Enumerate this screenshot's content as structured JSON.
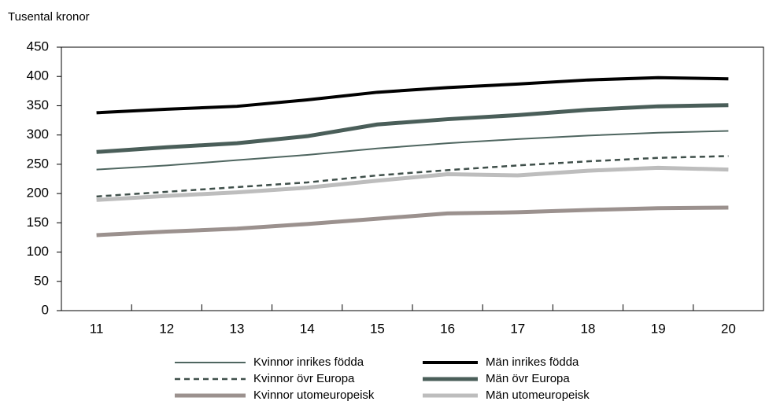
{
  "chart_data": {
    "type": "line",
    "y_label": "Tusental kronor",
    "categories": [
      "11",
      "12",
      "13",
      "14",
      "15",
      "16",
      "17",
      "18",
      "19",
      "20"
    ],
    "ylim": [
      0,
      450
    ],
    "yticks": [
      0,
      50,
      100,
      150,
      200,
      250,
      300,
      350,
      400,
      450
    ],
    "grid": false,
    "legend": "bottom",
    "series": [
      {
        "name": "Kvinnor inrikes födda",
        "color": "#4f6660",
        "line_width": 2,
        "dashed": false,
        "values": [
          241,
          248,
          257,
          266,
          277,
          286,
          293,
          299,
          304,
          307
        ]
      },
      {
        "name": "Män inrikes födda",
        "color": "#000000",
        "line_width": 4,
        "dashed": false,
        "values": [
          338,
          344,
          349,
          360,
          373,
          381,
          387,
          394,
          398,
          396
        ]
      },
      {
        "name": "Kvinnor övr Europa",
        "color": "#3f4f4a",
        "line_width": 2.5,
        "dashed": true,
        "values": [
          195,
          203,
          211,
          219,
          231,
          240,
          248,
          255,
          261,
          264
        ]
      },
      {
        "name": "Män övr Europa",
        "color": "#4a5e59",
        "line_width": 5,
        "dashed": false,
        "values": [
          271,
          279,
          286,
          298,
          318,
          327,
          334,
          343,
          349,
          351
        ]
      },
      {
        "name": "Kvinnor utomeuropeisk",
        "color": "#9b918e",
        "line_width": 5,
        "dashed": false,
        "values": [
          129,
          135,
          140,
          148,
          157,
          166,
          168,
          172,
          175,
          176
        ]
      },
      {
        "name": "Män utomeuropeisk",
        "color": "#bdbdbd",
        "line_width": 5,
        "dashed": false,
        "values": [
          189,
          196,
          202,
          210,
          222,
          233,
          231,
          239,
          244,
          241
        ]
      }
    ]
  }
}
